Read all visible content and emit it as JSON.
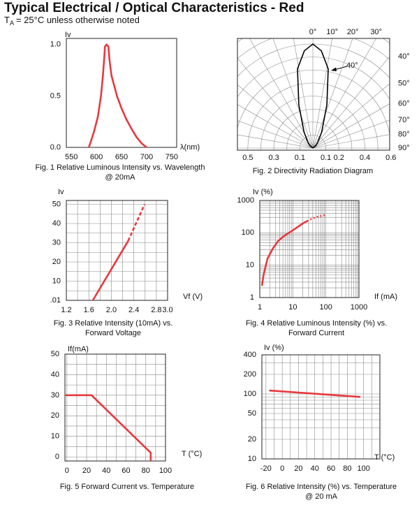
{
  "header": {
    "title": "Typical Electrical / Optical Characteristics - Red",
    "subtitle": {
      "symbol": "T",
      "subscript": "A",
      "text": "= 25°C unless otherwise noted"
    }
  },
  "chart_data": [
    {
      "type": "line",
      "caption": [
        "Fig. 1 Relative Luminous Intensity vs. Wavelength",
        "@ 20mA"
      ],
      "xlabel": "λ(nm)",
      "ylabel": "Iv",
      "xlim": [
        540,
        760
      ],
      "ylim": [
        0,
        1.06
      ],
      "xticks": [
        550,
        600,
        650,
        700,
        750
      ],
      "yticks": [
        {
          "value": 0,
          "label": "0.0"
        },
        0.5,
        {
          "value": 1,
          "label": "1.0"
        }
      ],
      "series": [
        {
          "color": "#e8383d",
          "style": "solid",
          "x": [
            585,
            595,
            603,
            609,
            613,
            616,
            617,
            620,
            624,
            626,
            630,
            641,
            650,
            660,
            670,
            680,
            690,
            700
          ],
          "values": [
            0,
            0.15,
            0.3,
            0.5,
            0.7,
            0.9,
            0.98,
            1.0,
            0.98,
            0.85,
            0.7,
            0.5,
            0.38,
            0.27,
            0.18,
            0.1,
            0.04,
            0
          ]
        }
      ]
    },
    {
      "type": "polar",
      "caption": [
        "Fig. 2 Directivity Radiation Diagram"
      ],
      "annotation": "40°",
      "rlim": [
        0,
        0.8
      ],
      "rgrid": [
        0.1,
        0.2,
        0.3,
        0.4,
        0.5,
        0.6,
        0.7,
        0.8,
        0.9,
        1.0
      ],
      "rticks_left": [
        0.5,
        0.3,
        0.1
      ],
      "rticks_right": [
        0.1,
        0.2,
        0.4,
        0.6
      ],
      "angle_ticks": [
        {
          "value": 0,
          "label": "0°"
        },
        {
          "value": 10,
          "label": "10°"
        },
        {
          "value": 20,
          "label": "20°"
        },
        {
          "value": 30,
          "label": "30°"
        },
        {
          "value": 40,
          "label": "40°"
        },
        {
          "value": 50,
          "label": "50°"
        },
        {
          "value": 60,
          "label": "60°"
        },
        {
          "value": 70,
          "label": "70°"
        },
        {
          "value": 80,
          "label": "80°"
        },
        {
          "value": 90,
          "label": "90°"
        }
      ],
      "series": [
        {
          "color": "#000000",
          "angles": [
            -90,
            -50,
            -40,
            -29,
            -18,
            -11,
            -5,
            0,
            5,
            11,
            18,
            29,
            40,
            50,
            90
          ],
          "values": [
            0,
            0.03,
            0.06,
            0.14,
            0.35,
            0.62,
            0.75,
            0.8,
            0.75,
            0.62,
            0.35,
            0.14,
            0.06,
            0.03,
            0
          ]
        }
      ]
    },
    {
      "type": "line",
      "caption": [
        "Fig. 3 Relative Intensity (10mA) vs.",
        "Forward Voltage"
      ],
      "xlabel": "Vf (V)",
      "ylabel": "Iv",
      "xlim": [
        1.2,
        3.0
      ],
      "ylim": [
        0,
        52
      ],
      "xticks": [
        1.2,
        1.6,
        {
          "value": 2,
          "label": "2.0"
        },
        2.4,
        2.8,
        {
          "value": 3,
          "label": "3.0"
        }
      ],
      "yticks": [
        {
          "value": 0.01,
          "label": ".01"
        },
        10,
        20,
        30,
        40,
        50
      ],
      "xgrid": [
        1.2,
        1.4,
        1.6,
        1.8,
        2.0,
        2.2,
        2.4,
        2.6,
        2.8,
        3.0
      ],
      "ygrid": [
        0,
        5,
        10,
        15,
        20,
        25,
        30,
        35,
        40,
        45,
        50
      ],
      "series": [
        {
          "color": "#e8383d",
          "style": "solid",
          "x": [
            1.67,
            2.3
          ],
          "values": [
            0,
            31
          ]
        },
        {
          "color": "#e8383d",
          "style": "dashed",
          "x": [
            2.3,
            2.59
          ],
          "values": [
            31,
            50
          ]
        }
      ]
    },
    {
      "type": "line",
      "caption": [
        "Fig. 4 Relative Luminous Intensity (%) vs.",
        "Forward Current"
      ],
      "xlabel": "If (mA)",
      "ylabel": "Iv (%)",
      "xlog": true,
      "ylog": true,
      "xlim": [
        1,
        1000
      ],
      "ylim": [
        1,
        1000
      ],
      "xticks": [
        1,
        10,
        100,
        1000
      ],
      "yticks": [
        1,
        10,
        100,
        1000
      ],
      "xgrid": [
        1,
        2,
        3,
        4,
        5,
        6,
        7,
        8,
        9,
        10,
        20,
        30,
        40,
        50,
        60,
        70,
        80,
        90,
        100,
        200,
        300,
        400,
        500,
        600,
        700,
        800,
        900,
        1000
      ],
      "ygrid": [
        1,
        2,
        3,
        4,
        5,
        6,
        7,
        8,
        9,
        10,
        20,
        30,
        40,
        50,
        60,
        70,
        80,
        90,
        100,
        200,
        300,
        400,
        500,
        600,
        700,
        800,
        900,
        1000
      ],
      "series": [
        {
          "color": "#e8383d",
          "style": "solid",
          "x": [
            1.16,
            1.3,
            1.72,
            2.5,
            3.6,
            5,
            7,
            10,
            15,
            20,
            27
          ],
          "values": [
            2.3,
            5,
            16,
            33,
            56,
            75,
            95,
            119,
            160,
            195,
            230
          ]
        },
        {
          "color": "#e8383d",
          "style": "dotted",
          "x": [
            27,
            40,
            60,
            100
          ],
          "values": [
            230,
            280,
            320,
            360
          ]
        }
      ]
    },
    {
      "type": "line",
      "caption": [
        "Fig. 5 Forward Current vs. Temperature"
      ],
      "xlabel": "T (°C)",
      "ylabel": "If(mA)",
      "xlim": [
        -2,
        100
      ],
      "ylim": [
        -2,
        50
      ],
      "xticks": [
        0,
        20,
        40,
        60,
        80,
        100
      ],
      "yticks": [
        0,
        10,
        20,
        30,
        40,
        50
      ],
      "xgrid": [
        0,
        10,
        20,
        30,
        40,
        50,
        60,
        70,
        80,
        90,
        100
      ],
      "ygrid": [
        0,
        5,
        10,
        15,
        20,
        25,
        30,
        35,
        40,
        45,
        50
      ],
      "series": [
        {
          "color": "#e8383d",
          "style": "solid",
          "x": [
            -2,
            25,
            85,
            85
          ],
          "values": [
            30,
            30,
            2,
            -2
          ]
        }
      ]
    },
    {
      "type": "line",
      "caption": [
        "Fig. 6 Relative Intensity (%) vs. Temperature",
        "@ 20 mA"
      ],
      "xlabel": "T (°C)",
      "ylabel": "Iv (%)",
      "ylog": true,
      "xlim": [
        -25,
        120
      ],
      "ylim": [
        10,
        400
      ],
      "xticks": [
        -20,
        0,
        20,
        40,
        60,
        80,
        100
      ],
      "yticks": [
        10,
        20,
        50,
        100,
        200,
        400
      ],
      "xgrid": [
        -20,
        -10,
        0,
        10,
        20,
        30,
        40,
        50,
        60,
        70,
        80,
        90,
        100,
        110
      ],
      "ygrid": [
        10,
        20,
        30,
        40,
        50,
        60,
        70,
        80,
        90,
        100,
        200,
        300,
        400
      ],
      "series": [
        {
          "color": "#e8383d",
          "style": "solid",
          "x": [
            -16,
            96
          ],
          "values": [
            113,
            90
          ]
        }
      ]
    }
  ]
}
